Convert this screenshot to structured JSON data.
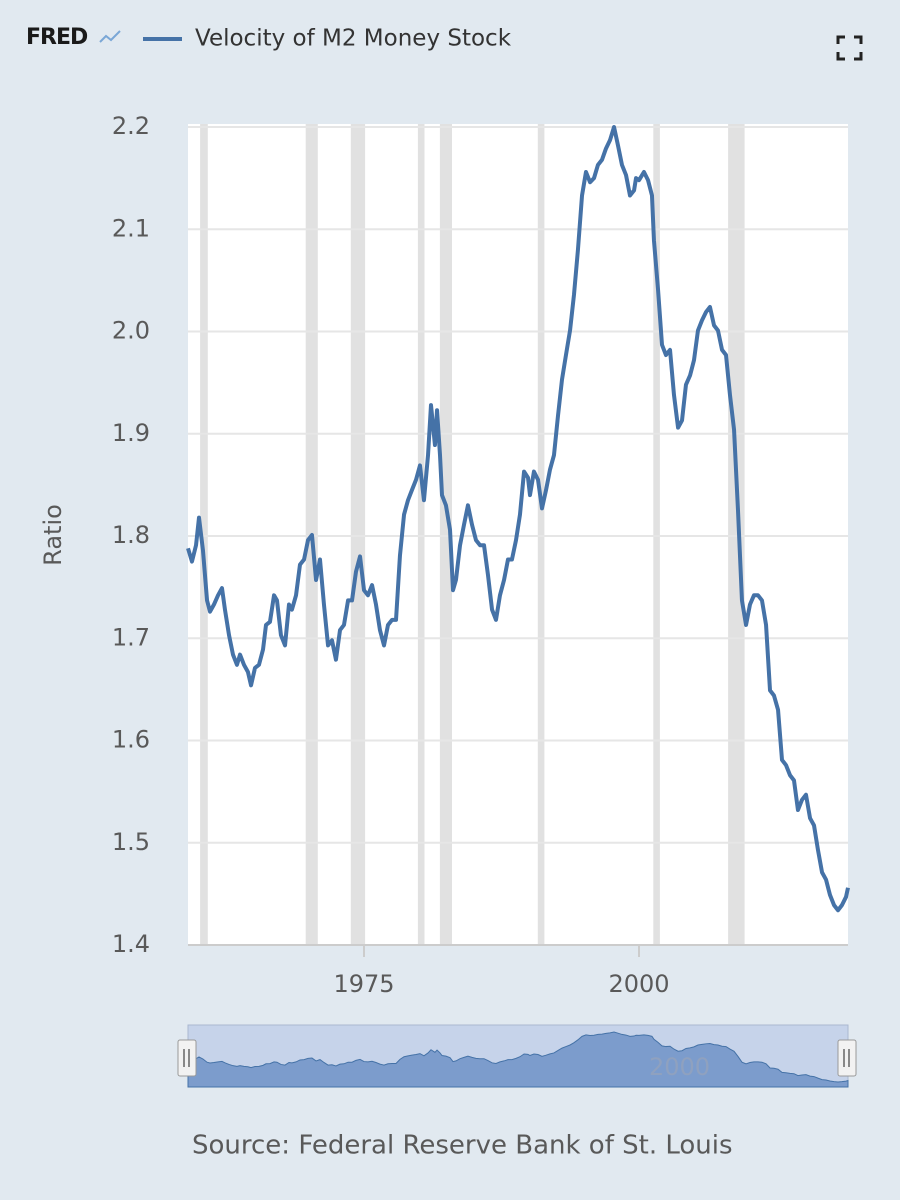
{
  "chart_data": {
    "type": "line",
    "logo": "FRED",
    "ylabel": "Ratio",
    "source": "Source: Federal Reserve Bank of St. Louis",
    "xlim": [
      1959,
      2019
    ],
    "xticks": [
      1975,
      2000
    ],
    "ylim": [
      1.4,
      2.2
    ],
    "yticks": [
      1.4,
      1.5,
      1.6,
      1.7,
      1.8,
      1.9,
      {
        "value": 2,
        "label": "2.0"
      },
      2.1,
      2.2
    ],
    "grid": true,
    "recessions": [
      [
        1960.1,
        1960.8
      ],
      [
        1969.7,
        1970.8
      ],
      [
        1973.8,
        1975.1
      ],
      [
        1979.9,
        1980.5
      ],
      [
        1981.9,
        1983.0
      ],
      [
        1990.8,
        1991.4
      ],
      [
        2001.3,
        2001.9
      ],
      [
        2008.1,
        2009.6
      ]
    ],
    "x": [
      1959.0,
      1959.36,
      1959.73,
      1960.0,
      1960.36,
      1960.73,
      1961.0,
      1961.36,
      1961.73,
      1962.09,
      1962.36,
      1962.73,
      1963.09,
      1963.45,
      1963.73,
      1964.09,
      1964.45,
      1964.73,
      1965.09,
      1965.45,
      1965.82,
      1966.09,
      1966.45,
      1966.82,
      1967.09,
      1967.45,
      1967.82,
      1968.18,
      1968.45,
      1968.82,
      1969.18,
      1969.55,
      1969.91,
      1970.27,
      1970.64,
      1971.0,
      1971.36,
      1971.73,
      1972.09,
      1972.45,
      1972.82,
      1973.18,
      1973.55,
      1973.91,
      1974.27,
      1974.64,
      1975.0,
      1975.36,
      1975.73,
      1976.09,
      1976.45,
      1976.82,
      1977.18,
      1977.55,
      1977.91,
      1978.27,
      1978.64,
      1979.0,
      1979.36,
      1979.73,
      1980.09,
      1980.45,
      1980.82,
      1981.09,
      1981.45,
      1981.64,
      1981.91,
      1982.09,
      1982.45,
      1982.82,
      1983.09,
      1983.36,
      1983.73,
      1984.09,
      1984.45,
      1984.82,
      1985.18,
      1985.55,
      1985.91,
      1986.27,
      1986.64,
      1987.0,
      1987.36,
      1987.73,
      1988.09,
      1988.45,
      1988.82,
      1989.18,
      1989.55,
      1989.91,
      1990.09,
      1990.45,
      1990.82,
      1991.18,
      1991.55,
      1991.91,
      1992.27,
      1992.64,
      1993.0,
      1993.36,
      1993.73,
      1994.09,
      1994.45,
      1994.82,
      1995.18,
      1995.55,
      1995.91,
      1996.27,
      1996.64,
      1997.0,
      1997.36,
      1997.73,
      1998.09,
      1998.45,
      1998.82,
      1999.18,
      1999.55,
      1999.73,
      2000.0,
      2000.45,
      2000.82,
      2001.18,
      2001.36,
      2001.73,
      2002.09,
      2002.45,
      2002.82,
      2003.18,
      2003.55,
      2003.91,
      2004.27,
      2004.64,
      2005.0,
      2005.36,
      2005.73,
      2006.09,
      2006.45,
      2006.82,
      2007.18,
      2007.55,
      2007.91,
      2008.27,
      2008.64,
      2009.0,
      2009.36,
      2009.73,
      2010.09,
      2010.45,
      2010.82,
      2011.18,
      2011.55,
      2011.91,
      2012.27,
      2012.64,
      2013.0,
      2013.36,
      2013.73,
      2014.09,
      2014.45,
      2014.82,
      2015.18,
      2015.55,
      2015.91,
      2016.27,
      2016.64,
      2017.0,
      2017.36,
      2017.73,
      2018.09,
      2018.45,
      2018.82,
      2019.0
    ],
    "series": [
      {
        "name": "Velocity of M2 Money Stock",
        "color": "#4572a7",
        "values": [
          1.788,
          1.775,
          1.791,
          1.818,
          1.786,
          1.737,
          1.726,
          1.733,
          1.742,
          1.749,
          1.728,
          1.703,
          1.684,
          1.674,
          1.684,
          1.674,
          1.667,
          1.654,
          1.671,
          1.674,
          1.689,
          1.713,
          1.716,
          1.742,
          1.737,
          1.703,
          1.693,
          1.733,
          1.728,
          1.742,
          1.772,
          1.777,
          1.796,
          1.801,
          1.757,
          1.777,
          1.733,
          1.693,
          1.698,
          1.679,
          1.708,
          1.713,
          1.737,
          1.737,
          1.765,
          1.78,
          1.747,
          1.742,
          1.752,
          1.733,
          1.708,
          1.693,
          1.713,
          1.718,
          1.718,
          1.781,
          1.821,
          1.835,
          1.845,
          1.855,
          1.869,
          1.835,
          1.879,
          1.928,
          1.889,
          1.923,
          1.879,
          1.84,
          1.83,
          1.806,
          1.747,
          1.757,
          1.791,
          1.811,
          1.83,
          1.811,
          1.796,
          1.791,
          1.791,
          1.762,
          1.728,
          1.718,
          1.742,
          1.757,
          1.777,
          1.777,
          1.796,
          1.821,
          1.863,
          1.857,
          1.84,
          1.863,
          1.855,
          1.827,
          1.845,
          1.865,
          1.879,
          1.918,
          1.953,
          1.977,
          2.001,
          2.036,
          2.08,
          2.133,
          2.156,
          2.146,
          2.15,
          2.163,
          2.168,
          2.179,
          2.187,
          2.2,
          2.182,
          2.163,
          2.153,
          2.133,
          2.138,
          2.15,
          2.148,
          2.156,
          2.148,
          2.133,
          2.089,
          2.041,
          1.987,
          1.977,
          1.982,
          1.938,
          1.906,
          1.913,
          1.948,
          1.957,
          1.972,
          2.001,
          2.011,
          2.019,
          2.024,
          2.006,
          2.001,
          1.982,
          1.977,
          1.938,
          1.904,
          1.825,
          1.737,
          1.713,
          1.733,
          1.742,
          1.742,
          1.737,
          1.713,
          1.649,
          1.644,
          1.63,
          1.581,
          1.576,
          1.566,
          1.561,
          1.532,
          1.542,
          1.547,
          1.524,
          1.517,
          1.493,
          1.471,
          1.464,
          1.449,
          1.439,
          1.434,
          1.439,
          1.447,
          1.456
        ]
      }
    ]
  }
}
